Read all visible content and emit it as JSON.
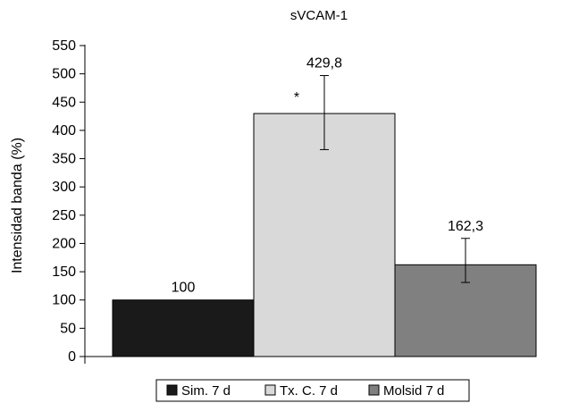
{
  "chart_data": {
    "type": "bar",
    "title": "sVCAM-1",
    "xlabel": "",
    "ylabel": "Intensidad banda (%)",
    "ylim": [
      0,
      550
    ],
    "yticks": [
      0,
      50,
      100,
      150,
      200,
      250,
      300,
      350,
      400,
      450,
      500,
      550
    ],
    "grid": false,
    "legend_position": "bottom",
    "categories": [
      "Sim. 7 d",
      "Tx. C. 7 d",
      "Molsid 7 d"
    ],
    "values": [
      100,
      429.8,
      162.3
    ],
    "data_labels": [
      "100",
      "429,8",
      "162,3"
    ],
    "error_bars": [
      null,
      {
        "lower": 366,
        "upper": 497
      },
      {
        "lower": 131,
        "upper": 209
      }
    ],
    "annotations": [
      {
        "category": "Tx. C. 7 d",
        "text": "*"
      }
    ],
    "colors": [
      "#1a1a1a",
      "#d9d9d9",
      "#808080"
    ],
    "legend": [
      {
        "label": "Sim. 7 d",
        "color": "#1a1a1a"
      },
      {
        "label": "Tx. C. 7 d",
        "color": "#d9d9d9"
      },
      {
        "label": "Molsid 7 d",
        "color": "#808080"
      }
    ]
  }
}
